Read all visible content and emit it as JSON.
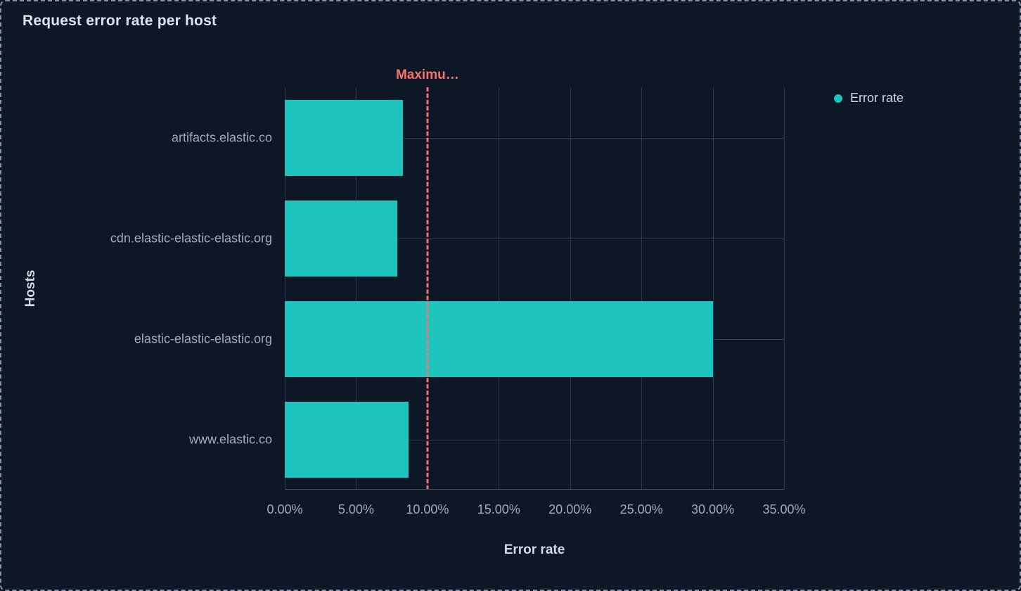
{
  "panel": {
    "title": "Request error rate per host"
  },
  "legend": {
    "position": "right",
    "items": [
      {
        "label": "Error rate",
        "color": "#1dc4bd"
      }
    ]
  },
  "colors": {
    "bar_teal": "#1dc4bd",
    "threshold_red": "#f6726a",
    "background": "#0e1726",
    "panel_border": "#8394ab",
    "gridline": "#2c3850",
    "text_muted": "#9daac0",
    "text_bright": "#dce3ee"
  },
  "chart_data": {
    "type": "bar",
    "orientation": "horizontal",
    "title": "Request error rate per host",
    "xlabel": "Error rate",
    "ylabel": "Hosts",
    "categories": [
      "artifacts.elastic.co",
      "cdn.elastic-elastic-elastic.org",
      "elastic-elastic-elastic.org",
      "www.elastic.co"
    ],
    "series": [
      {
        "name": "Error rate",
        "values": [
          8.3,
          7.9,
          30.0,
          8.7
        ],
        "unit": "%",
        "color": "#1dc4bd"
      }
    ],
    "xlim": [
      0,
      35
    ],
    "x_tick_values": [
      0,
      5,
      10,
      15,
      20,
      25,
      30,
      35
    ],
    "x_ticks": [
      "0.00%",
      "5.00%",
      "10.00%",
      "15.00%",
      "20.00%",
      "25.00%",
      "30.00%",
      "35.00%"
    ],
    "grid": true,
    "legend_position": "right",
    "annotation": {
      "label": "Maximu…",
      "value": 10.0,
      "color": "#f6726a",
      "style": "dashed-vertical-line"
    }
  }
}
